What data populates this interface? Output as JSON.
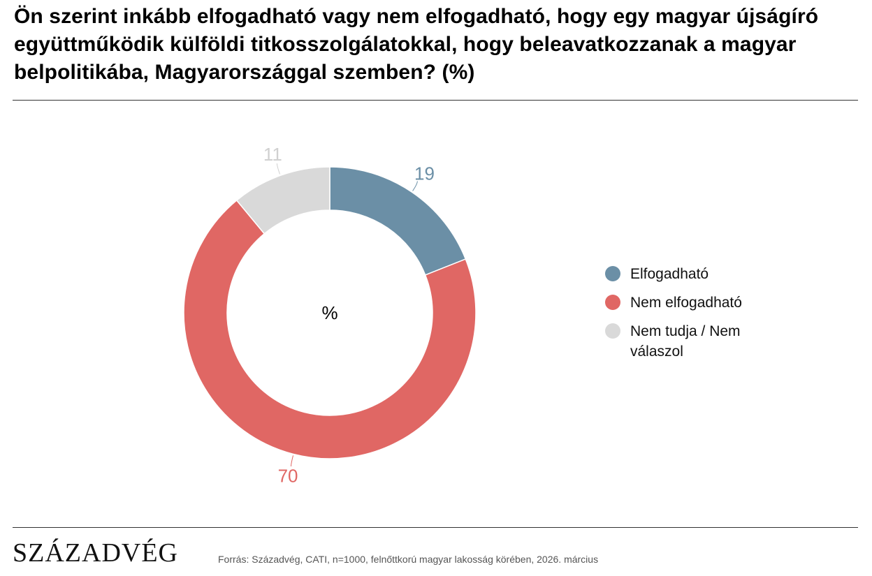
{
  "title": "Ön szerint inkább elfogadható vagy nem elfogadható, hogy egy magyar újságíró együttműködik külföldi titkosszolgálatokkal, hogy beleavatkozzanak a magyar belpolitikába, Magyarországgal szemben? (%)",
  "chart_data": {
    "type": "pie",
    "variant": "donut",
    "center_label": "%",
    "categories": [
      "Elfogadható",
      "Nem elfogadható",
      "Nem tudja / Nem válaszol"
    ],
    "values": [
      19,
      70,
      11
    ],
    "colors": [
      "#6b8fa6",
      "#e06764",
      "#d9d9d9"
    ],
    "label_colors": [
      "#6b8fa6",
      "#e06764",
      "#d0d0d0"
    ],
    "legend_position": "right"
  },
  "legend": [
    {
      "label": "Elfogadható",
      "color": "#6b8fa6"
    },
    {
      "label": "Nem elfogadható",
      "color": "#e06764"
    },
    {
      "label": "Nem tudja / Nem válaszol",
      "color": "#d9d9d9"
    }
  ],
  "footer": {
    "logo": "SZÁZADVÉG",
    "source": "Forrás: Századvég, CATI, n=1000, felnőttkorú magyar lakosság körében, 2026. március"
  }
}
